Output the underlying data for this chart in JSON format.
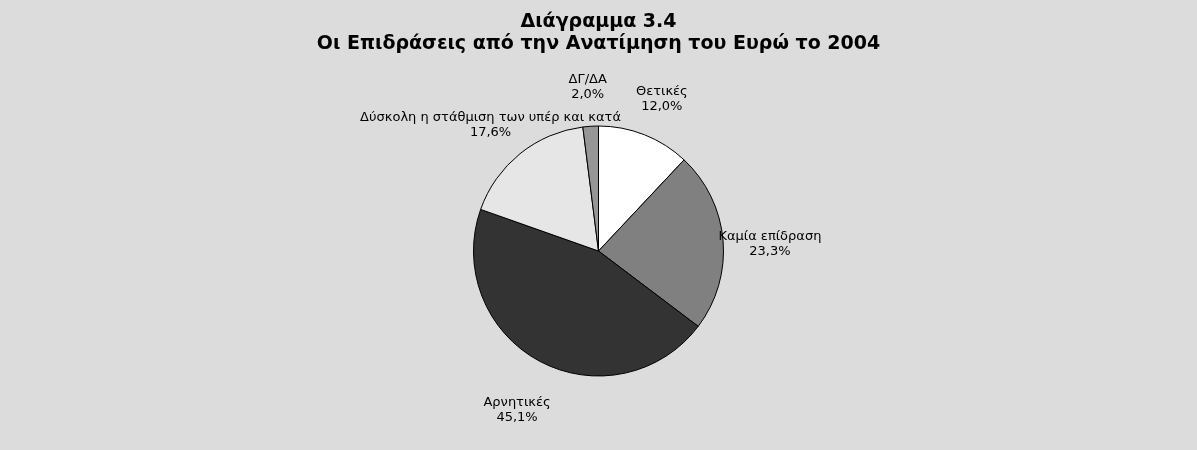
{
  "chart_data": {
    "type": "pie",
    "title": "Διάγραμμα 3.4",
    "subtitle": "Οι Επιδράσεις από την Ανατίμηση του Ευρώ το 2004",
    "categories": [
      "Θετικές",
      "Καμία επίδραση",
      "Αρνητικές",
      "Δύσκολη η στάθμιση των υπέρ και κατά",
      "ΔΓ/ΔΑ"
    ],
    "values": [
      12.0,
      23.3,
      45.1,
      17.6,
      2.0
    ],
    "colors": [
      "#ffffff",
      "#808080",
      "#333333",
      "#e6e6e6",
      "#969696"
    ],
    "value_labels": [
      "12,0%",
      "23,3%",
      "45,1%",
      "17,6%",
      "2,0%"
    ]
  }
}
